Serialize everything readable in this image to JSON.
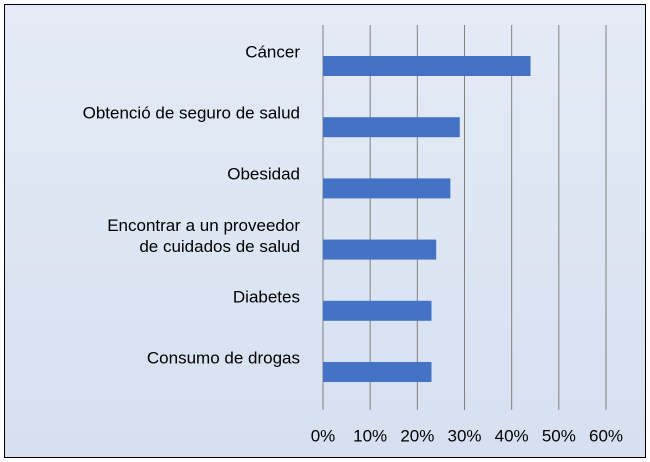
{
  "chart_data": {
    "type": "bar",
    "orientation": "horizontal",
    "categories": [
      "Cáncer",
      "Obtenció de seguro de salud",
      "Obesidad",
      "Encontrar a un proveedor\nde cuidados de salud",
      "Diabetes",
      "Consumo de drogas"
    ],
    "values": [
      44,
      29,
      27,
      24,
      23,
      23
    ],
    "color": "#4472c4",
    "xlim": [
      0,
      60
    ],
    "xticks": [
      {
        "value": 0,
        "label": "0%"
      },
      {
        "value": 10,
        "label": "10%"
      },
      {
        "value": 20,
        "label": "20%"
      },
      {
        "value": 30,
        "label": "30%"
      },
      {
        "value": 40,
        "label": "40%"
      },
      {
        "value": 50,
        "label": "50%"
      },
      {
        "value": 60,
        "label": "60%"
      }
    ],
    "grid": true
  }
}
